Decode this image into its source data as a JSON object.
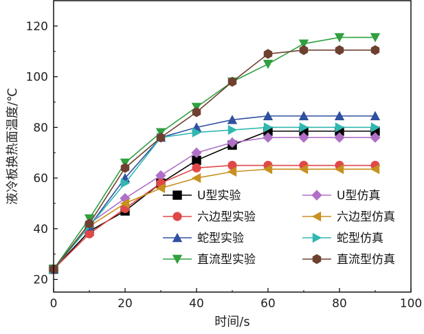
{
  "chart_data": {
    "type": "line",
    "xlabel": "时间/s",
    "ylabel": "液冷板换热面温度/℃",
    "xlim": [
      0,
      100
    ],
    "ylim": [
      15,
      130
    ],
    "xticks": [
      0,
      20,
      40,
      60,
      80,
      100
    ],
    "yticks": [
      20,
      40,
      60,
      80,
      100,
      120
    ],
    "grid": false,
    "legend_position": "lower-right",
    "x": [
      0,
      10,
      20,
      30,
      40,
      50,
      60,
      70,
      80,
      90
    ],
    "series": [
      {
        "name": "U型实验",
        "color": "#000000",
        "marker": "square",
        "values": [
          24,
          39,
          47,
          58,
          67,
          73,
          78.5,
          78.5,
          78.5,
          78.5
        ]
      },
      {
        "name": "U型仿真",
        "color": "#b070c8",
        "marker": "diamond",
        "values": [
          24,
          42,
          52,
          61,
          70,
          74,
          76,
          76,
          76,
          76
        ]
      },
      {
        "name": "六边型实验",
        "color": "#e04848",
        "marker": "circle",
        "values": [
          24,
          38,
          48,
          58,
          64,
          65,
          65,
          65,
          65,
          65
        ]
      },
      {
        "name": "六边型仿真",
        "color": "#c8901e",
        "marker": "triangle-left",
        "values": [
          24,
          41,
          50,
          56,
          60,
          62.5,
          63.5,
          63.5,
          63.5,
          63.5
        ]
      },
      {
        "name": "蛇型实验",
        "color": "#3050a0",
        "marker": "triangle-up",
        "values": [
          24,
          41,
          60,
          76,
          80,
          83,
          84.5,
          84.5,
          84.5,
          84.5
        ]
      },
      {
        "name": "蛇型仿真",
        "color": "#30b8b0",
        "marker": "triangle-right",
        "values": [
          24,
          41,
          58,
          76,
          78,
          79,
          80,
          80,
          80,
          80
        ]
      },
      {
        "name": "直流型实验",
        "color": "#30a040",
        "marker": "triangle-down",
        "values": [
          24,
          44,
          66,
          78,
          88,
          98,
          105,
          113,
          115.5,
          115.5
        ]
      },
      {
        "name": "直流型仿真",
        "color": "#6e4030",
        "marker": "hexagon",
        "values": [
          24,
          42,
          64,
          76,
          86,
          98,
          109,
          110.5,
          110.5,
          110.5
        ]
      }
    ]
  }
}
